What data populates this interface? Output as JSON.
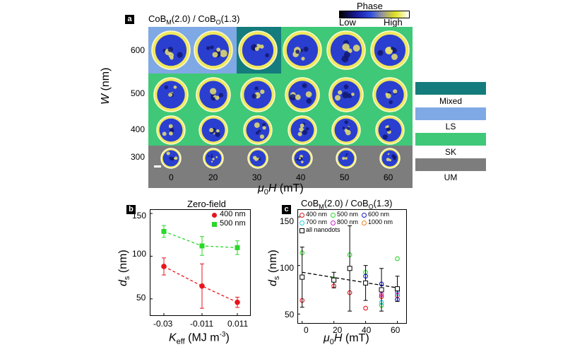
{
  "panel_a": {
    "tag": "a",
    "title_prefix": "CoB",
    "title_sub1": "M",
    "title_mid": "(2.0) / CoB",
    "title_sub2": "O",
    "title_suffix": "(1.3)",
    "colorbar_title": "Phase",
    "colorbar_low": "Low",
    "colorbar_high": "High",
    "ylabel_main": "W",
    "ylabel_unit": " (nm)",
    "xlabel_main": "μ",
    "xlabel_sub": "0",
    "xlabel_rest": "H (mT)",
    "rows": [
      "600",
      "500",
      "400",
      "300"
    ],
    "cols": [
      "0",
      "20",
      "30",
      "40",
      "50",
      "60"
    ],
    "legend": [
      "Mixed",
      "LS",
      "SK",
      "UM"
    ],
    "colors": {
      "mixed": "#147c7c",
      "ls": "#7fa9e4",
      "sk": "#3fc878",
      "um": "#7d7d7d"
    }
  },
  "panel_b": {
    "tag": "b",
    "title": "Zero-field",
    "ylabel": "d",
    "ylabel_sub": "s",
    "ylabel_unit": " (nm)",
    "xlabel": "K",
    "xlabel_sub": "eff",
    "xlabel_unit": " (MJ m",
    "xlabel_sup": "-3",
    "xlabel_close": ")",
    "yticks": [
      "150",
      "100",
      "50"
    ],
    "xticks": [
      "-0.03",
      "-0.011",
      "0.011"
    ],
    "legend": [
      "400 nm",
      "500 nm"
    ]
  },
  "panel_c": {
    "tag": "c",
    "title_prefix": "CoB",
    "title_sub1": "M",
    "title_mid": "(2.0) / CoB",
    "title_sub2": "O",
    "title_suffix": "(1.3)",
    "ylabel": "d",
    "ylabel_sub": "s",
    "ylabel_unit": " (nm)",
    "xlabel": "μ",
    "xlabel_sub": "0",
    "xlabel_rest": "H (mT)",
    "yticks": [
      "150",
      "100",
      "50"
    ],
    "xticks": [
      "0",
      "20",
      "40",
      "60"
    ],
    "legend": [
      "400 nm",
      "500 nm",
      "600 nm",
      "700 nm",
      "800 nm",
      "1000 nm",
      "all nanodots"
    ]
  },
  "chart_data": [
    {
      "type": "scatter",
      "title": "Zero-field",
      "xlabel": "K_eff (MJ m^-3)",
      "ylabel": "d_s (nm)",
      "categories": [
        "-0.03",
        "-0.011",
        "0.011"
      ],
      "ylim": [
        30,
        155
      ],
      "series": [
        {
          "name": "400 nm",
          "color": "#e8141c",
          "values": [
            88,
            65,
            46
          ],
          "err": [
            10,
            26,
            6
          ]
        },
        {
          "name": "500 nm",
          "color": "#2ad82a",
          "values": [
            129,
            112,
            110
          ],
          "err": [
            7,
            11,
            8
          ]
        }
      ]
    },
    {
      "type": "scatter",
      "title": "CoB_M(2.0) / CoB_O(1.3)",
      "xlabel": "μ0H (mT)",
      "ylabel": "d_s (nm)",
      "xlim": [
        -3,
        66
      ],
      "ylim": [
        40,
        158
      ],
      "series": [
        {
          "name": "400 nm",
          "color": "#e8141c",
          "x": [
            0,
            20,
            30,
            40,
            50,
            60
          ],
          "values": [
            64,
            79,
            72,
            56,
            68,
            69
          ]
        },
        {
          "name": "500 nm",
          "color": "#2ad82a",
          "x": [
            0,
            20,
            30,
            40,
            50,
            60
          ],
          "values": [
            113,
            86,
            111,
            93,
            59,
            107
          ]
        },
        {
          "name": "600 nm",
          "color": "#1818c8",
          "x": [
            40,
            50,
            60
          ],
          "values": [
            89,
            81,
            65
          ]
        },
        {
          "name": "700 nm",
          "color": "#20d0e8",
          "x": [
            50,
            60
          ],
          "values": [
            62,
            71
          ]
        },
        {
          "name": "800 nm",
          "color": "#d020d0",
          "x": [
            50,
            60
          ],
          "values": [
            70,
            73
          ]
        },
        {
          "name": "1000 nm",
          "color": "#f08020",
          "x": [
            60
          ],
          "values": [
            76
          ]
        },
        {
          "name": "all nanodots",
          "color": "#000000",
          "x": [
            0,
            20,
            30,
            40,
            50,
            60
          ],
          "values": [
            88,
            85,
            97,
            82,
            75,
            76
          ],
          "err": [
            31,
            8,
            44,
            18,
            22,
            13
          ]
        }
      ],
      "fit_line": {
        "x": [
          0,
          60
        ],
        "y": [
          93,
          77
        ]
      }
    }
  ]
}
